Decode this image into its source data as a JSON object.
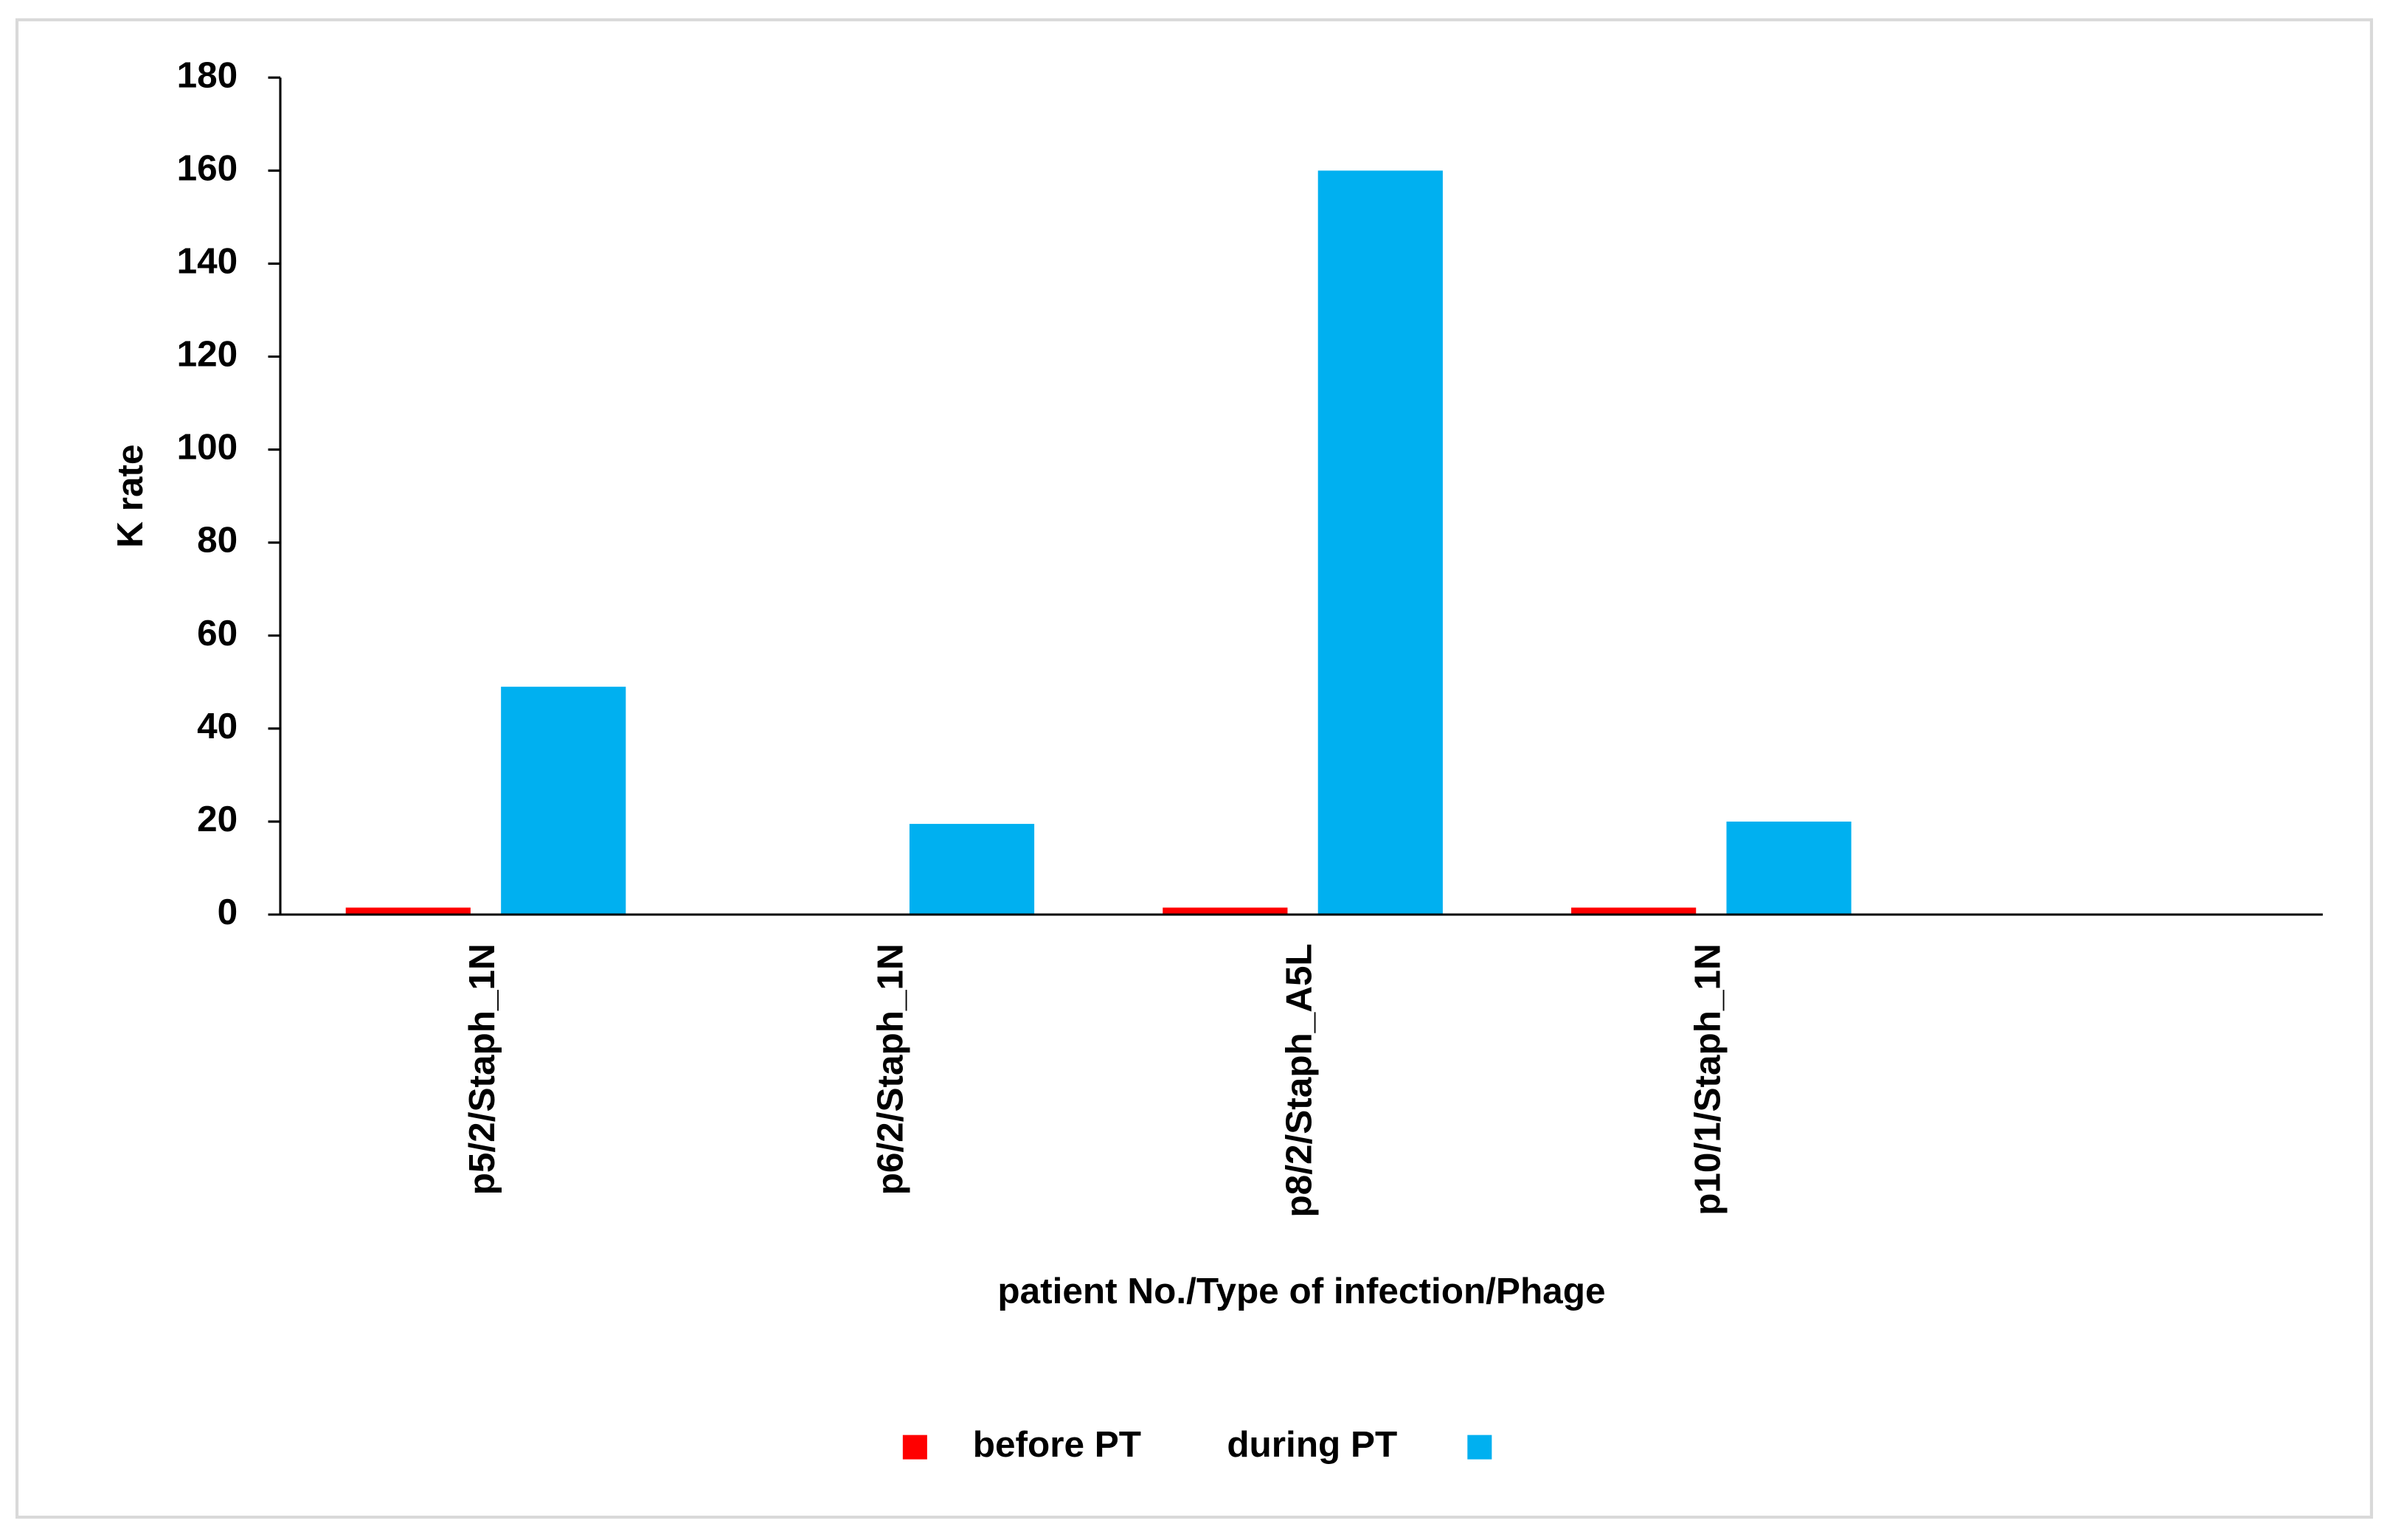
{
  "chart_data": {
    "type": "bar",
    "categories": [
      "p5/2/Staph_1N",
      "p6/2/Staph_1N",
      "p8/2/Staph_A5L",
      "p10/1/Staph_1N",
      null
    ],
    "series": [
      {
        "name": "before PT",
        "color": "#ff0000",
        "values": [
          1.5,
          0,
          1.5,
          1.5,
          null
        ]
      },
      {
        "name": "during PT",
        "color": "#00b0f0",
        "values": [
          49,
          19.5,
          160,
          20,
          null
        ]
      }
    ],
    "x_label": "patient No./Type of infection/Phage",
    "y_label": "K rate",
    "ylim": [
      0,
      180
    ],
    "yticks": [
      0,
      20,
      40,
      60,
      80,
      100,
      120,
      140,
      160,
      180
    ],
    "grid": false,
    "legend": "bottom"
  }
}
